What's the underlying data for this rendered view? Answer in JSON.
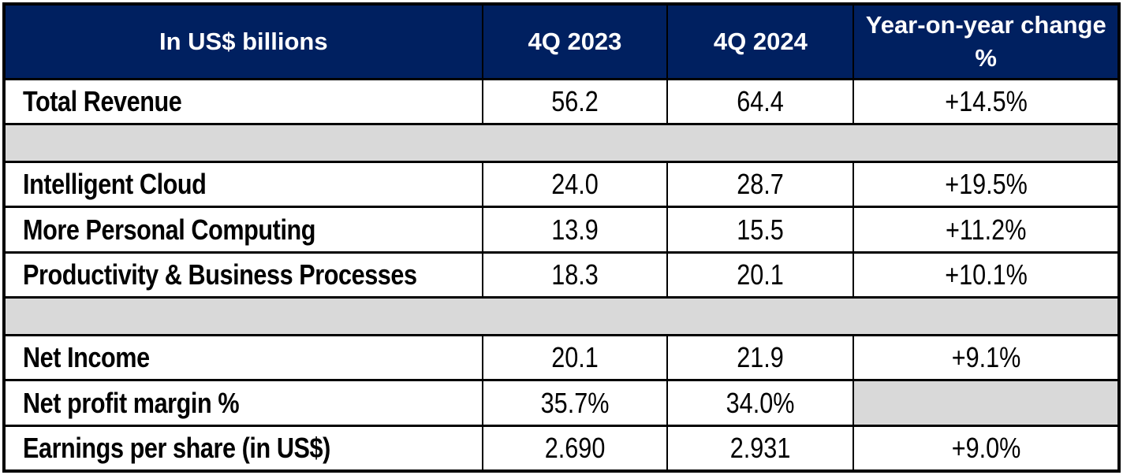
{
  "colors": {
    "header_bg": "#002060",
    "header_text": "#ffffff",
    "spacer_bg": "#d9d9d9",
    "border": "#000000",
    "body_text": "#000000"
  },
  "table": {
    "unit_label": "In US$ billions",
    "columns": [
      "4Q 2023",
      "4Q 2024",
      "Year-on-year change %"
    ],
    "rows": [
      {
        "type": "data",
        "label": "Total Revenue",
        "q4_2023": "56.2",
        "q4_2024": "64.4",
        "yoy": "+14.5%"
      },
      {
        "type": "spacer"
      },
      {
        "type": "data",
        "label": "Intelligent Cloud",
        "q4_2023": "24.0",
        "q4_2024": "28.7",
        "yoy": "+19.5%"
      },
      {
        "type": "data",
        "label": "More Personal Computing",
        "q4_2023": "13.9",
        "q4_2024": "15.5",
        "yoy": "+11.2%"
      },
      {
        "type": "data",
        "label": "Productivity & Business Processes",
        "q4_2023": "18.3",
        "q4_2024": "20.1",
        "yoy": "+10.1%"
      },
      {
        "type": "spacer"
      },
      {
        "type": "data",
        "label": "Net Income",
        "q4_2023": "20.1",
        "q4_2024": "21.9",
        "yoy": "+9.1%"
      },
      {
        "type": "data",
        "label": "Net profit margin %",
        "q4_2023": "35.7%",
        "q4_2024": "34.0%",
        "yoy": "",
        "yoy_gray": true
      },
      {
        "type": "data",
        "label": "Earnings per share (in US$)",
        "q4_2023": "2.690",
        "q4_2024": "2.931",
        "yoy": "+9.0%"
      }
    ]
  },
  "chart_data": {
    "type": "table",
    "title": "In US$ billions",
    "columns": [
      "In US$ billions",
      "4Q 2023",
      "4Q 2024",
      "Year-on-year change %"
    ],
    "rows": [
      [
        "Total Revenue",
        56.2,
        64.4,
        "+14.5%"
      ],
      [
        "Intelligent Cloud",
        24.0,
        28.7,
        "+19.5%"
      ],
      [
        "More Personal Computing",
        13.9,
        15.5,
        "+11.2%"
      ],
      [
        "Productivity & Business Processes",
        18.3,
        20.1,
        "+10.1%"
      ],
      [
        "Net Income",
        20.1,
        21.9,
        "+9.1%"
      ],
      [
        "Net profit margin %",
        "35.7%",
        "34.0%",
        ""
      ],
      [
        "Earnings per share (in US$)",
        "2.690",
        "2.931",
        "+9.0%"
      ]
    ]
  }
}
